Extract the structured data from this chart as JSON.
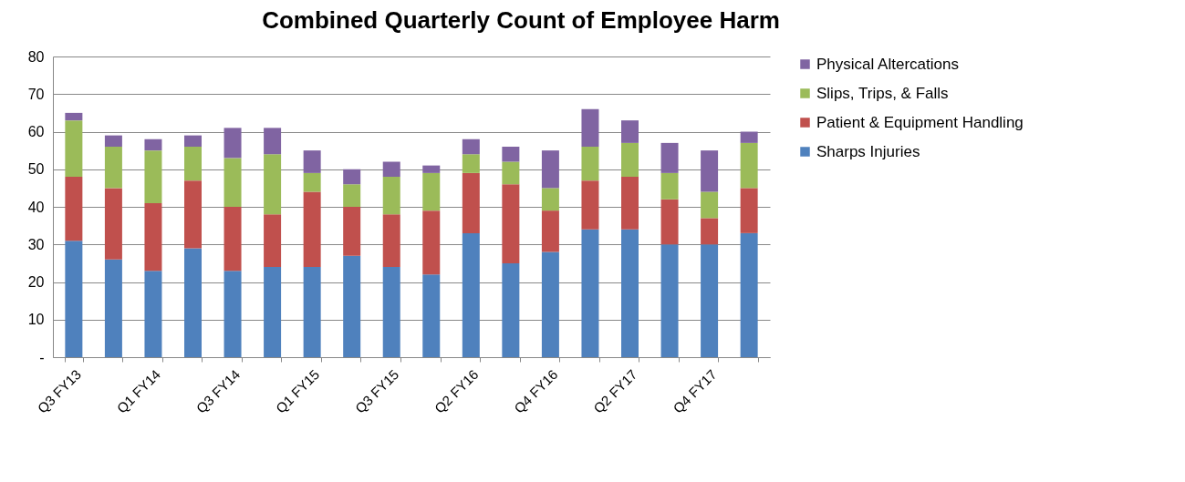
{
  "chart_data": {
    "type": "bar",
    "title": "Combined Quarterly Count of Employee Harm",
    "stacked": true,
    "categories": [
      "Q3 FY13",
      null,
      "Q1 FY14",
      null,
      "Q3 FY14",
      null,
      "Q1 FY15",
      null,
      "Q3 FY15",
      null,
      "Q2 FY16",
      null,
      "Q4 FY16",
      null,
      "Q2 FY17",
      null,
      "Q4 FY17",
      null
    ],
    "series": [
      {
        "name": "Sharps Injuries",
        "color": "#4f81bd",
        "values": [
          31,
          26,
          23,
          29,
          23,
          24,
          24,
          27,
          24,
          22,
          33,
          25,
          28,
          34,
          34,
          30,
          30,
          33
        ]
      },
      {
        "name": "Patient & Equipment Handling",
        "color": "#c0504d",
        "values": [
          17,
          19,
          18,
          18,
          17,
          14,
          20,
          13,
          14,
          17,
          16,
          21,
          11,
          13,
          14,
          12,
          7,
          12
        ]
      },
      {
        "name": "Slips, Trips, & Falls",
        "color": "#9bbb59",
        "values": [
          15,
          11,
          14,
          9,
          13,
          16,
          5,
          6,
          10,
          10,
          5,
          6,
          6,
          9,
          9,
          7,
          7,
          12
        ]
      },
      {
        "name": "Physical Altercations",
        "color": "#8064a2",
        "values": [
          2,
          3,
          3,
          3,
          8,
          7,
          6,
          4,
          4,
          2,
          4,
          4,
          10,
          10,
          6,
          8,
          11,
          3
        ]
      }
    ],
    "ylim": [
      0,
      80
    ],
    "yticks": [
      {
        "value": 0,
        "label": "-"
      },
      10,
      20,
      30,
      40,
      50,
      60,
      70,
      80
    ],
    "grid": "y",
    "legend": "right"
  }
}
